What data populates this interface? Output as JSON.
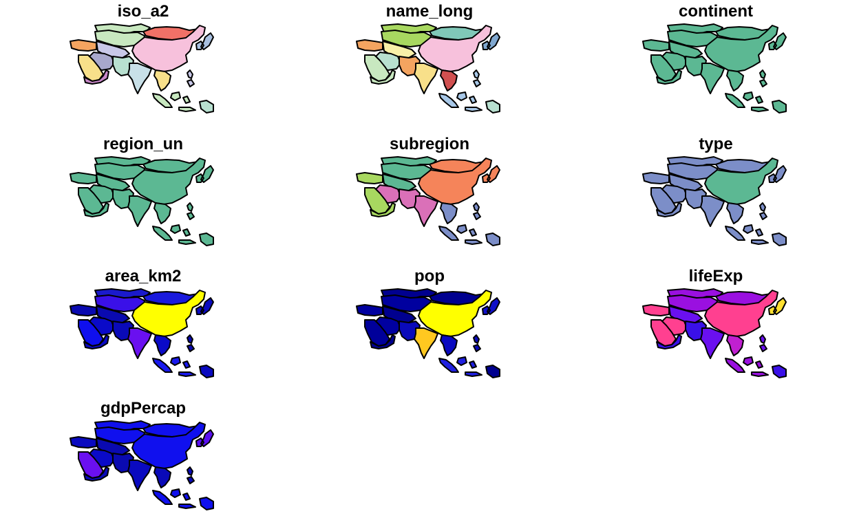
{
  "panels": [
    {
      "title": "iso_a2",
      "colors": {
        "china": "#F7C1DC",
        "mongolia": "#F07167",
        "russia_strip": "#C8E8C0",
        "kazakhstan": "#C8E8C0",
        "central_asia": "#C8C8E8",
        "iran": "#A8A8CC",
        "turkey_caucasus": "#F4A460",
        "arabia": "#F8E08A",
        "yemen_oman": "#C888C8",
        "afghanistan_pakistan": "#B8E0D0",
        "india": "#C8E0E8",
        "southeast_asia": "#F8E08A",
        "korea_japan": "#A8C0E0",
        "indonesia": "#C8E8C0",
        "philippines": "#C8C8E8",
        "png": "#B8E0D0"
      }
    },
    {
      "title": "name_long",
      "colors": {
        "china": "#F7C1DC",
        "mongolia": "#80C8B8",
        "russia_strip": "#A8D860",
        "kazakhstan": "#A8D860",
        "central_asia": "#F8F0A8",
        "iran": "#B8E0D0",
        "turkey_caucasus": "#F4A460",
        "arabia": "#C8E8C0",
        "yemen_oman": "#C8E8C0",
        "afghanistan_pakistan": "#F4A460",
        "india": "#F8E08A",
        "southeast_asia": "#D05050",
        "korea_japan": "#80A8D0",
        "indonesia": "#A8C8E8",
        "philippines": "#A8C8E8",
        "png": "#B8E0D0"
      }
    },
    {
      "title": "continent",
      "colors": {
        "china": "#5CB893",
        "mongolia": "#5CB893",
        "russia_strip": "#5CB893",
        "kazakhstan": "#5CB893",
        "central_asia": "#5CB893",
        "iran": "#5CB893",
        "turkey_caucasus": "#5CB893",
        "arabia": "#5CB893",
        "yemen_oman": "#5CB893",
        "afghanistan_pakistan": "#5CB893",
        "india": "#5CB893",
        "southeast_asia": "#5CB893",
        "korea_japan": "#5CB893",
        "indonesia": "#5CB893",
        "philippines": "#5CB893",
        "png": "#5CB893"
      }
    },
    {
      "title": "region_un",
      "colors": {
        "china": "#5CB893",
        "mongolia": "#5CB893",
        "russia_strip": "#5CB893",
        "kazakhstan": "#5CB893",
        "central_asia": "#5CB893",
        "iran": "#5CB893",
        "turkey_caucasus": "#5CB893",
        "arabia": "#5CB893",
        "yemen_oman": "#5CB893",
        "afghanistan_pakistan": "#5CB893",
        "india": "#5CB893",
        "southeast_asia": "#5CB893",
        "korea_japan": "#5CB893",
        "indonesia": "#5CB893",
        "philippines": "#5CB893",
        "png": "#5CB893"
      }
    },
    {
      "title": "subregion",
      "colors": {
        "china": "#F5845A",
        "mongolia": "#F5845A",
        "russia_strip": "#5CB893",
        "kazakhstan": "#5CB893",
        "central_asia": "#5CB893",
        "iran": "#DA70B8",
        "turkey_caucasus": "#A8D860",
        "arabia": "#A8D860",
        "yemen_oman": "#A8D860",
        "afghanistan_pakistan": "#DA70B8",
        "india": "#DA70B8",
        "southeast_asia": "#7C8EC8",
        "korea_japan": "#F5845A",
        "indonesia": "#7C8EC8",
        "philippines": "#7C8EC8",
        "png": "#7C8EC8"
      }
    },
    {
      "title": "type",
      "colors": {
        "china": "#5CB893",
        "mongolia": "#7C8EC8",
        "russia_strip": "#7C8EC8",
        "kazakhstan": "#7C8EC8",
        "central_asia": "#7C8EC8",
        "iran": "#7C8EC8",
        "turkey_caucasus": "#7C8EC8",
        "arabia": "#7C8EC8",
        "yemen_oman": "#7C8EC8",
        "afghanistan_pakistan": "#7C8EC8",
        "india": "#7C8EC8",
        "southeast_asia": "#7C8EC8",
        "korea_japan": "#7C8EC8",
        "indonesia": "#7C8EC8",
        "philippines": "#7C8EC8",
        "png": "#7C8EC8"
      }
    },
    {
      "title": "area_km2",
      "colors": {
        "china": "#FFFF00",
        "mongolia": "#1A1ADD",
        "russia_strip": "#1A1ACC",
        "kazakhstan": "#3A10E8",
        "central_asia": "#0A0AB0",
        "iran": "#0A0AC8",
        "turkey_caucasus": "#0A0AB0",
        "arabia": "#0F0FEE",
        "yemen_oman": "#0A0AC0",
        "afghanistan_pakistan": "#0A0AB8",
        "india": "#6A10F0",
        "southeast_asia": "#0A0AC8",
        "korea_japan": "#0A0AC0",
        "indonesia": "#1A1AEE",
        "philippines": "#0A0AB0",
        "png": "#0A0AC0"
      }
    },
    {
      "title": "pop",
      "colors": {
        "china": "#FFFF00",
        "mongolia": "#00008F",
        "russia_strip": "#00008F",
        "kazakhstan": "#00009F",
        "central_asia": "#00008F",
        "iran": "#0000A0",
        "turkey_caucasus": "#00009F",
        "arabia": "#00009A",
        "yemen_oman": "#00008F",
        "afghanistan_pakistan": "#0A0ABA",
        "india": "#FFC820",
        "southeast_asia": "#0A0AC0",
        "korea_japan": "#1010C8",
        "indonesia": "#2020E0",
        "philippines": "#0A0ABA",
        "png": "#00008F"
      }
    },
    {
      "title": "lifeExp",
      "colors": {
        "china": "#FF4090",
        "mongolia": "#9A10E0",
        "russia_strip": "#9A10E0",
        "kazakhstan": "#9A10E0",
        "central_asia": "#6A10F0",
        "iran": "#FF4090",
        "turkey_caucasus": "#FF4090",
        "arabia": "#FF4090",
        "yemen_oman": "#3A10E8",
        "afghanistan_pakistan": "#3A10E8",
        "india": "#6A10F0",
        "southeast_asia": "#C020D0",
        "korea_japan": "#FFE030",
        "indonesia": "#9A10E0",
        "philippines": "#6A10F0",
        "png": "#3A10E8"
      }
    },
    {
      "title": "gdpPercap",
      "colors": {
        "china": "#1010EE",
        "mongolia": "#1010EE",
        "russia_strip": "#1010EE",
        "kazakhstan": "#1010EE",
        "central_asia": "#0A0AB0",
        "iran": "#0A0AC8",
        "turkey_caucasus": "#0A0AC0",
        "arabia": "#6A10F0",
        "yemen_oman": "#0A0AB8",
        "afghanistan_pakistan": "#0A0AB0",
        "india": "#0A0AC0",
        "southeast_asia": "#0A0AB8",
        "korea_japan": "#5A10F0",
        "indonesia": "#1010EE",
        "philippines": "#0A0AB8",
        "png": "#1010EE"
      }
    }
  ]
}
